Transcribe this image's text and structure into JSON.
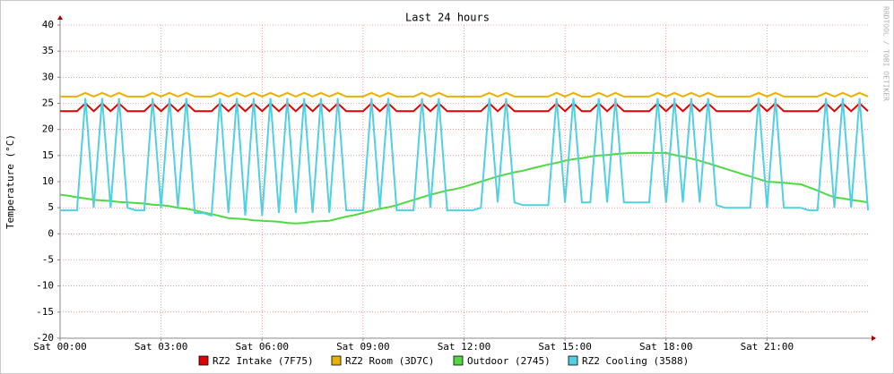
{
  "chart_data": {
    "type": "line",
    "title": "Last 24 hours",
    "y_label": "Temperature (°C)",
    "watermark": "RRDTOOL / TOBI OETIKER",
    "x": [
      0,
      0.25,
      0.5,
      0.75,
      1,
      1.25,
      1.5,
      1.75,
      2,
      2.25,
      2.5,
      2.75,
      3,
      3.25,
      3.5,
      3.75,
      4,
      4.25,
      4.5,
      4.75,
      5,
      5.25,
      5.5,
      5.75,
      6,
      6.25,
      6.5,
      6.75,
      7,
      7.25,
      7.5,
      7.75,
      8,
      8.25,
      8.5,
      8.75,
      9,
      9.25,
      9.5,
      9.75,
      10,
      10.25,
      10.5,
      10.75,
      11,
      11.25,
      11.5,
      11.75,
      12,
      12.25,
      12.5,
      12.75,
      13,
      13.25,
      13.5,
      13.75,
      14,
      14.25,
      14.5,
      14.75,
      15,
      15.25,
      15.5,
      15.75,
      16,
      16.25,
      16.5,
      16.75,
      17,
      17.25,
      17.5,
      17.75,
      18,
      18.25,
      18.5,
      18.75,
      19,
      19.25,
      19.5,
      19.75,
      20,
      20.25,
      20.5,
      20.75,
      21,
      21.25,
      21.5,
      21.75,
      22,
      22.25,
      22.5,
      22.75,
      23,
      23.25,
      23.5,
      23.75,
      24
    ],
    "xlim": [
      0,
      24
    ],
    "xticks": [
      {
        "value": 0,
        "label": "Sat 00:00"
      },
      {
        "value": 3,
        "label": "Sat 03:00"
      },
      {
        "value": 6,
        "label": "Sat 06:00"
      },
      {
        "value": 9,
        "label": "Sat 09:00"
      },
      {
        "value": 12,
        "label": "Sat 12:00"
      },
      {
        "value": 15,
        "label": "Sat 15:00"
      },
      {
        "value": 18,
        "label": "Sat 18:00"
      },
      {
        "value": 21,
        "label": "Sat 21:00"
      }
    ],
    "ylim": [
      -20,
      40
    ],
    "yticks": [
      -20,
      -15,
      -10,
      -5,
      0,
      5,
      10,
      15,
      20,
      25,
      30,
      35,
      40
    ],
    "grid": true,
    "series": [
      {
        "name": "RZ2 Intake (7F75)",
        "color": "#e00000",
        "values": [
          23.5,
          23.5,
          23.5,
          25,
          23.5,
          25,
          23.5,
          25,
          23.5,
          23.5,
          23.5,
          25,
          23.5,
          25,
          23.5,
          25,
          23.5,
          23.5,
          23.5,
          25,
          23.5,
          25,
          23.5,
          25,
          23.5,
          25,
          23.5,
          25,
          23.5,
          25,
          23.5,
          25,
          23.5,
          25,
          23.5,
          23.5,
          23.5,
          25,
          23.5,
          25,
          23.5,
          23.5,
          23.5,
          25,
          23.5,
          25,
          23.5,
          23.5,
          23.5,
          23.5,
          23.5,
          25,
          23.5,
          25,
          23.5,
          23.5,
          23.5,
          23.5,
          23.5,
          25,
          23.5,
          25,
          23.5,
          23.5,
          25,
          23.5,
          25,
          23.5,
          23.5,
          23.5,
          23.5,
          25,
          23.5,
          25,
          23.5,
          25,
          23.5,
          25,
          23.5,
          23.5,
          23.5,
          23.5,
          23.5,
          25,
          23.5,
          25,
          23.5,
          23.5,
          23.5,
          23.5,
          23.5,
          25,
          23.5,
          25,
          23.5,
          25,
          23.5
        ]
      },
      {
        "name": "RZ2 Room (3D7C)",
        "color": "#e8b000",
        "values": [
          26.3,
          26.3,
          26.3,
          27,
          26.3,
          27,
          26.3,
          27,
          26.3,
          26.3,
          26.3,
          27,
          26.3,
          27,
          26.3,
          27,
          26.3,
          26.3,
          26.3,
          27,
          26.3,
          27,
          26.3,
          27,
          26.3,
          27,
          26.3,
          27,
          26.3,
          27,
          26.3,
          27,
          26.3,
          27,
          26.3,
          26.3,
          26.3,
          27,
          26.3,
          27,
          26.3,
          26.3,
          26.3,
          27,
          26.3,
          27,
          26.3,
          26.3,
          26.3,
          26.3,
          26.3,
          27,
          26.3,
          27,
          26.3,
          26.3,
          26.3,
          26.3,
          26.3,
          27,
          26.3,
          27,
          26.3,
          26.3,
          27,
          26.3,
          27,
          26.3,
          26.3,
          26.3,
          26.3,
          27,
          26.3,
          27,
          26.3,
          27,
          26.3,
          27,
          26.3,
          26.3,
          26.3,
          26.3,
          26.3,
          27,
          26.3,
          27,
          26.3,
          26.3,
          26.3,
          26.3,
          26.3,
          27,
          26.3,
          27,
          26.3,
          27,
          26.3
        ]
      },
      {
        "name": "Outdoor (2745)",
        "color": "#50d840",
        "values": [
          7.5,
          7.3,
          7,
          6.8,
          6.5,
          6.4,
          6.3,
          6.1,
          6,
          5.9,
          5.8,
          5.6,
          5.5,
          5.3,
          5,
          4.8,
          4.5,
          4.1,
          3.8,
          3.4,
          3,
          2.9,
          2.8,
          2.6,
          2.5,
          2.4,
          2.3,
          2.1,
          2,
          2.1,
          2.3,
          2.4,
          2.5,
          2.9,
          3.3,
          3.6,
          4,
          4.4,
          4.8,
          5.1,
          5.5,
          6,
          6.5,
          7,
          7.5,
          7.9,
          8.3,
          8.6,
          9,
          9.5,
          10,
          10.5,
          11,
          11.4,
          11.8,
          12.1,
          12.5,
          12.9,
          13.3,
          13.6,
          14,
          14.3,
          14.5,
          14.8,
          15,
          15.1,
          15.3,
          15.4,
          15.5,
          15.5,
          15.5,
          15.5,
          15.5,
          15.1,
          14.8,
          14.4,
          14,
          13.5,
          13,
          12.5,
          12,
          11.5,
          11,
          10.5,
          10,
          9.9,
          9.8,
          9.6,
          9.5,
          8.9,
          8.3,
          7.6,
          7,
          6.8,
          6.5,
          6.3,
          6
        ]
      },
      {
        "name": "RZ2 Cooling (3588)",
        "color": "#50d0e0",
        "values": [
          4.5,
          4.5,
          4.5,
          26,
          5,
          26,
          5,
          26,
          5,
          4.5,
          4.5,
          26,
          5,
          26,
          5,
          26,
          4,
          4,
          3.5,
          26,
          4,
          26,
          3.5,
          26,
          3.5,
          26,
          4,
          26,
          4,
          26,
          4,
          26,
          4,
          26,
          4.5,
          4.5,
          4.5,
          26,
          5,
          26,
          4.5,
          4.5,
          4.5,
          26,
          5,
          26,
          4.5,
          4.5,
          4.5,
          4.5,
          5,
          26,
          6,
          26,
          6,
          5.5,
          5.5,
          5.5,
          5.5,
          26,
          6,
          26,
          6,
          6,
          26,
          6,
          26,
          6,
          6,
          6,
          6,
          26,
          6,
          26,
          6,
          26,
          6,
          26,
          5.5,
          5,
          5,
          5,
          5,
          26,
          5,
          26,
          5,
          5,
          5,
          4.5,
          4.5,
          26,
          5,
          26,
          5,
          26,
          4.5
        ]
      }
    ]
  }
}
